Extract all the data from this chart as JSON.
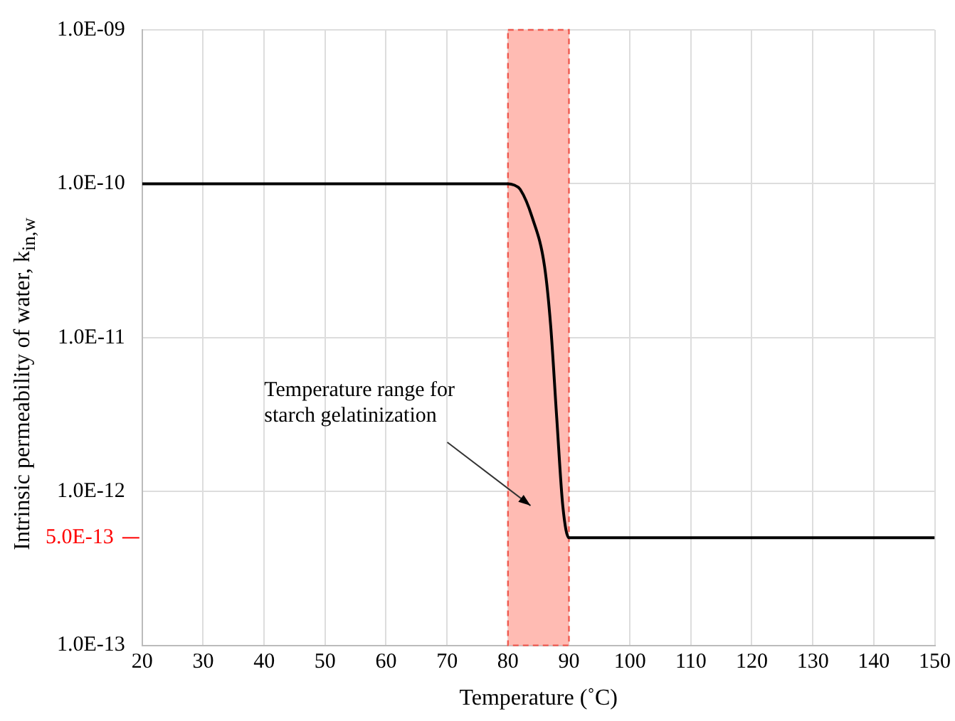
{
  "chart_data": {
    "type": "line",
    "xlabel": "Temperature (˚C)",
    "ylabel": "Intrinsic permeability of water, k$_{in,w}$",
    "x": [
      20,
      80,
      81,
      82,
      84,
      86,
      87,
      88,
      89,
      90,
      150
    ],
    "series": [
      {
        "color": "#000000",
        "values": [
          1e-10,
          1e-10,
          9.8e-11,
          9.2e-11,
          6e-11,
          2.9e-11,
          1.2e-11,
          3e-12,
          8e-13,
          5e-13,
          5e-13
        ]
      }
    ],
    "log": "y",
    "xlim": [
      20,
      150
    ],
    "xticks": [
      20,
      30,
      40,
      50,
      60,
      70,
      80,
      90,
      100,
      110,
      120,
      130,
      140,
      150
    ],
    "ylim": [
      1e-13,
      1e-09
    ],
    "yticks": [
      {
        "value": 1e-13,
        "label": "1.0E-13"
      },
      {
        "value": 1e-12,
        "label": "1.0E-12"
      },
      {
        "value": 1e-11,
        "label": "1.0E-11"
      },
      {
        "value": 1e-10,
        "label": "1.0E-10"
      },
      {
        "value": 1e-09,
        "label": "1.0E-09"
      }
    ],
    "grid": true,
    "legend": false,
    "marker": "none",
    "line_style": "solid",
    "bands": [
      {
        "axis": "x",
        "from": 80,
        "to": 90,
        "color": "#ffbbb3"
      }
    ],
    "ref_lines": [
      {
        "axis": "y",
        "value": 5e-13,
        "label": "5.0E-13",
        "color": "#ff0000"
      }
    ],
    "annotations": [
      "Temperature range for starch gelatinization"
    ]
  }
}
